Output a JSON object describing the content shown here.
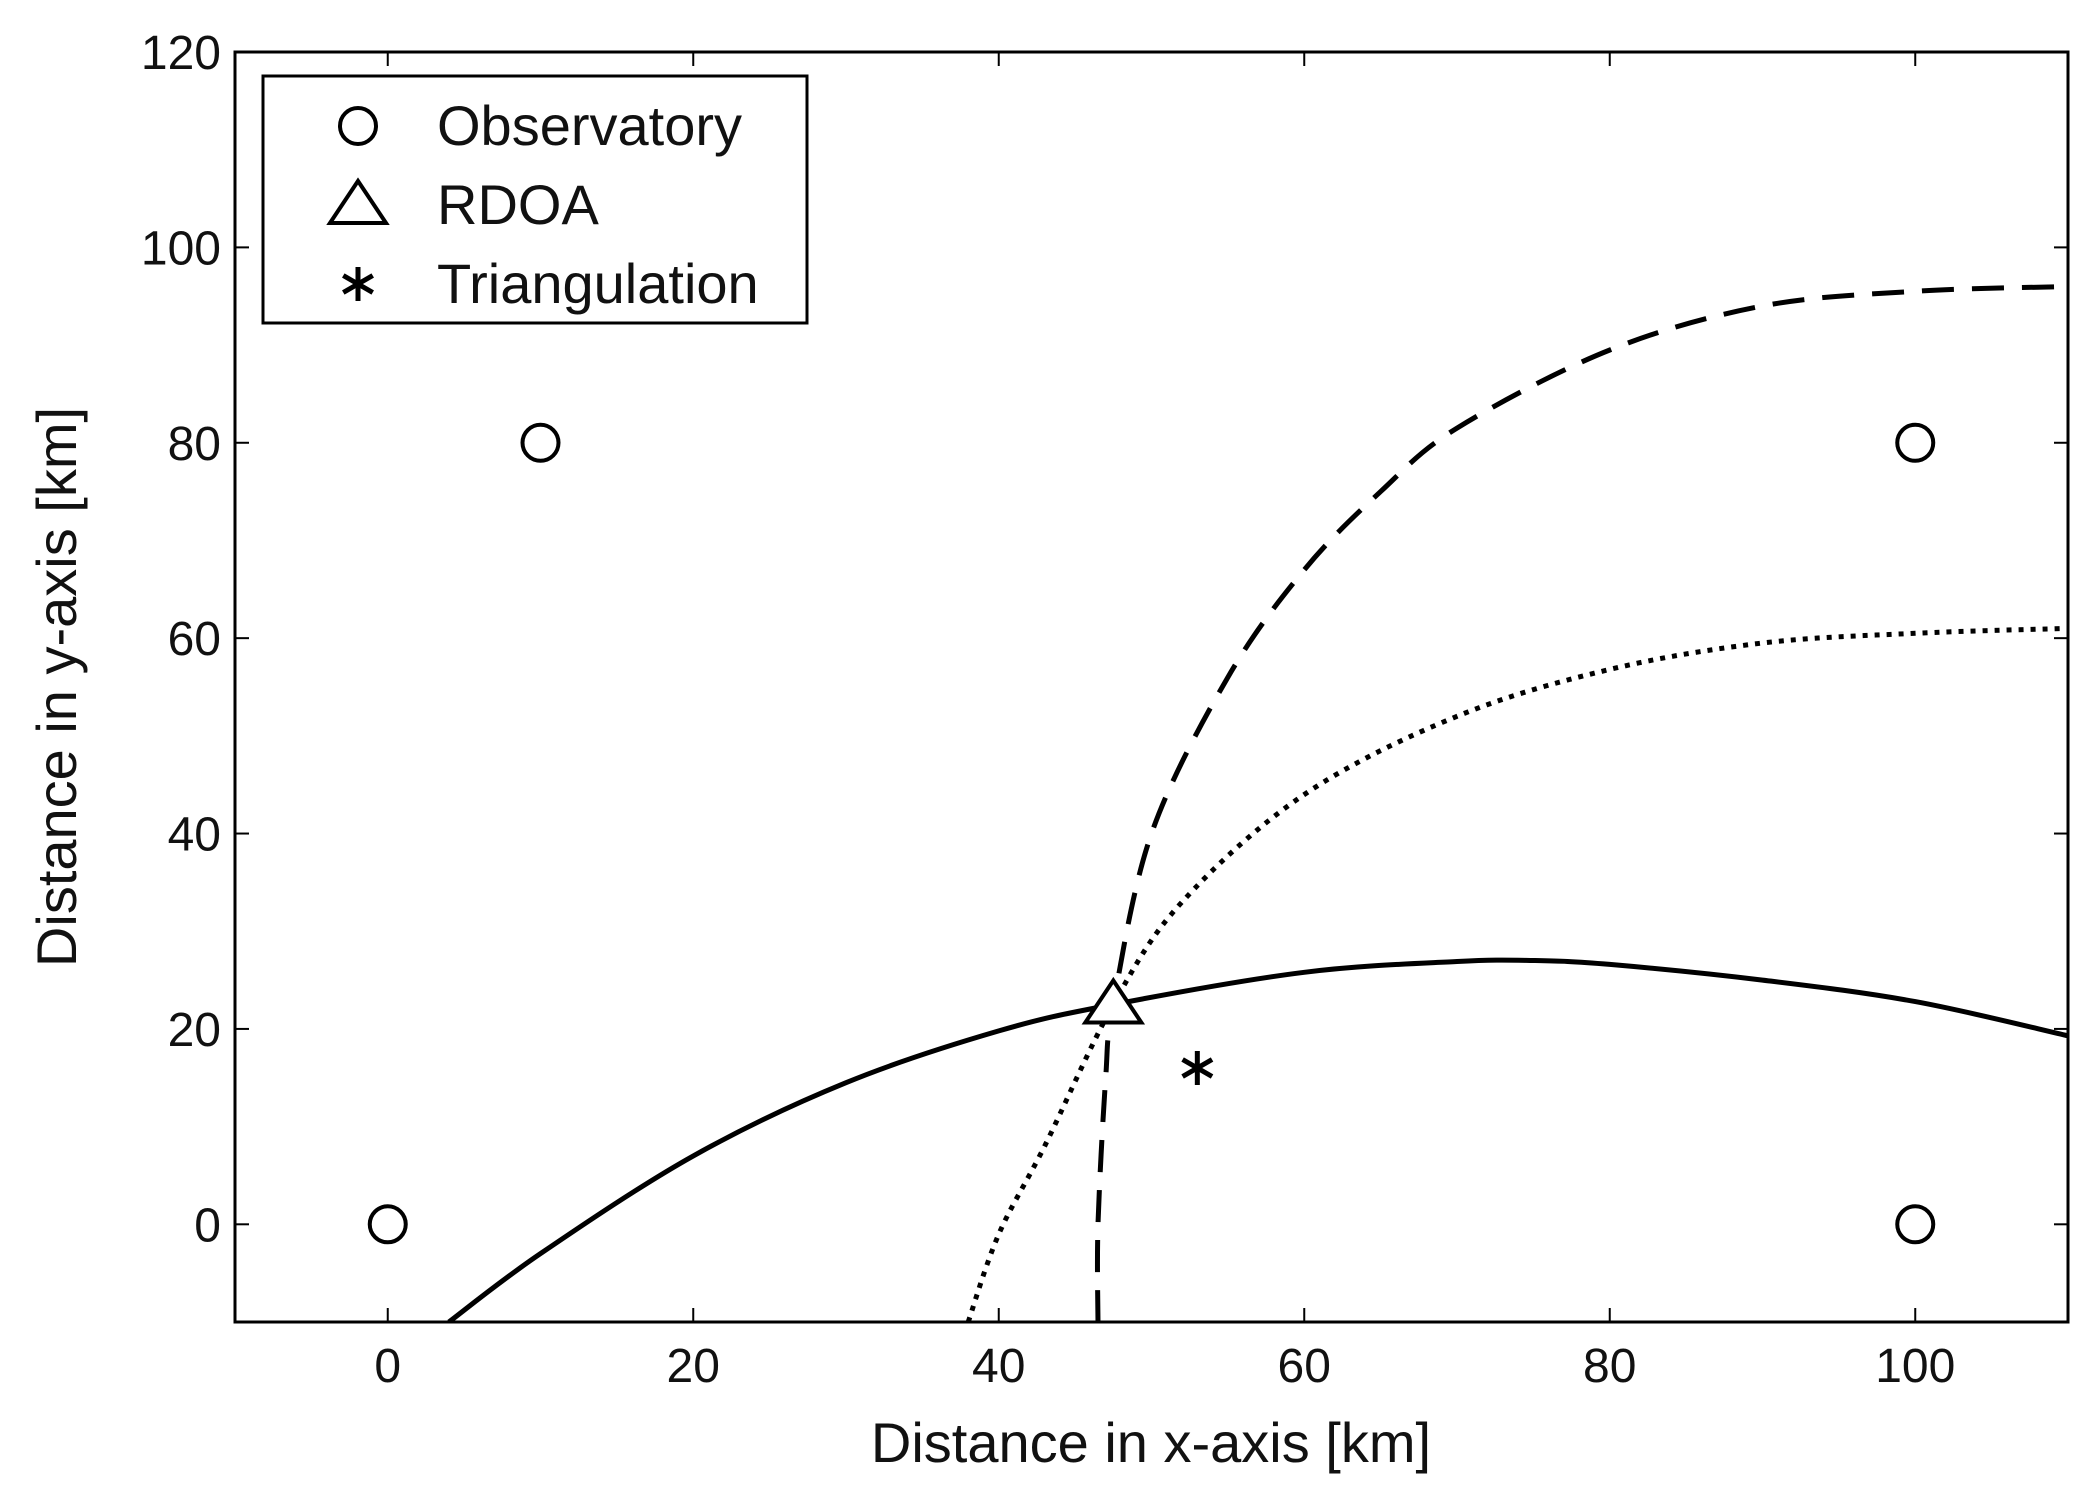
{
  "chart_data": {
    "type": "line",
    "xlabel": "Distance in x-axis [km]",
    "ylabel": "Distance in y-axis [km]",
    "xlim": [
      -10,
      110
    ],
    "ylim": [
      -10,
      120
    ],
    "xticks": [
      0,
      20,
      40,
      60,
      80,
      100
    ],
    "yticks": [
      0,
      20,
      40,
      60,
      80,
      100,
      120
    ],
    "grid": false,
    "legend": {
      "position": "top-left",
      "entries": [
        {
          "label": "Observatory",
          "marker": "circle"
        },
        {
          "label": "RDOA",
          "marker": "triangle"
        },
        {
          "label": "Triangulation",
          "marker": "asterisk"
        }
      ]
    },
    "markers": [
      {
        "series": "Observatory",
        "marker": "circle",
        "points": [
          [
            0,
            0
          ],
          [
            10,
            80
          ],
          [
            100,
            80
          ],
          [
            100,
            0
          ]
        ]
      },
      {
        "series": "RDOA",
        "marker": "triangle",
        "points": [
          [
            47.5,
            22.5
          ]
        ]
      },
      {
        "series": "Triangulation",
        "marker": "asterisk",
        "points": [
          [
            53,
            16
          ]
        ]
      }
    ],
    "curves": [
      {
        "style": "solid",
        "points": [
          [
            4,
            -10
          ],
          [
            10,
            -3
          ],
          [
            20,
            7
          ],
          [
            30,
            14.5
          ],
          [
            40,
            19.8
          ],
          [
            47.5,
            22.5
          ],
          [
            60,
            25.8
          ],
          [
            70,
            26.9
          ],
          [
            75,
            27
          ],
          [
            80,
            26.6
          ],
          [
            90,
            25
          ],
          [
            100,
            22.8
          ],
          [
            110,
            19.3
          ]
        ]
      },
      {
        "style": "dashed",
        "points": [
          [
            46.5,
            -10
          ],
          [
            46.5,
            0
          ],
          [
            47,
            15
          ],
          [
            47.5,
            22.5
          ],
          [
            50,
            40
          ],
          [
            55,
            56
          ],
          [
            60,
            67
          ],
          [
            65,
            75
          ],
          [
            70,
            81.5
          ],
          [
            80,
            89.5
          ],
          [
            90,
            94
          ],
          [
            100,
            95.5
          ],
          [
            110,
            96
          ]
        ]
      },
      {
        "style": "dotted",
        "points": [
          [
            38,
            -10
          ],
          [
            40,
            -1
          ],
          [
            43,
            8
          ],
          [
            47.5,
            22.5
          ],
          [
            52,
            33
          ],
          [
            60,
            44
          ],
          [
            70,
            52
          ],
          [
            80,
            56.8
          ],
          [
            90,
            59.5
          ],
          [
            100,
            60.5
          ],
          [
            110,
            61
          ]
        ]
      }
    ]
  }
}
